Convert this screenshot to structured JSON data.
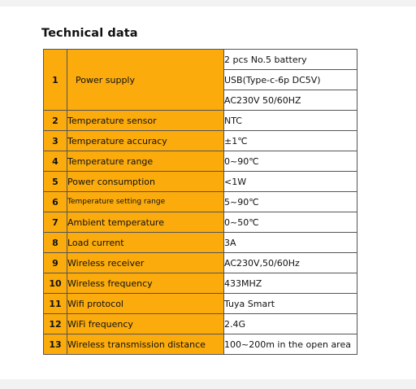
{
  "title": "Technical data",
  "rows": [
    {
      "no": "1",
      "param": "Power supply",
      "values": [
        "2 pcs No.5 battery",
        "USB(Type-c-6p DC5V)",
        "AC230V 50/60HZ"
      ]
    },
    {
      "no": "2",
      "param": "Temperature sensor",
      "value": "NTC"
    },
    {
      "no": "3",
      "param": "Temperature accuracy",
      "value": "±1℃"
    },
    {
      "no": "4",
      "param": "Temperature range",
      "value": "0~90℃"
    },
    {
      "no": "5",
      "param": "Power consumption",
      "value": "<1W"
    },
    {
      "no": "6",
      "param": "Temperature setting range",
      "value": "5~90℃"
    },
    {
      "no": "7",
      "param": "Ambient temperature",
      "value": "0~50℃"
    },
    {
      "no": "8",
      "param": "Load current",
      "value": "3A"
    },
    {
      "no": "9",
      "param": "Wireless receiver",
      "value": "AC230V,50/60Hz"
    },
    {
      "no": "10",
      "param": "Wireless frequency",
      "value": "433MHZ"
    },
    {
      "no": "11",
      "param": "Wifi protocol",
      "value": "Tuya Smart"
    },
    {
      "no": "12",
      "param": "WiFi frequency",
      "value": "2.4G"
    },
    {
      "no": "13",
      "param": "Wireless transmission distance",
      "value": "100~200m in the open area"
    }
  ]
}
